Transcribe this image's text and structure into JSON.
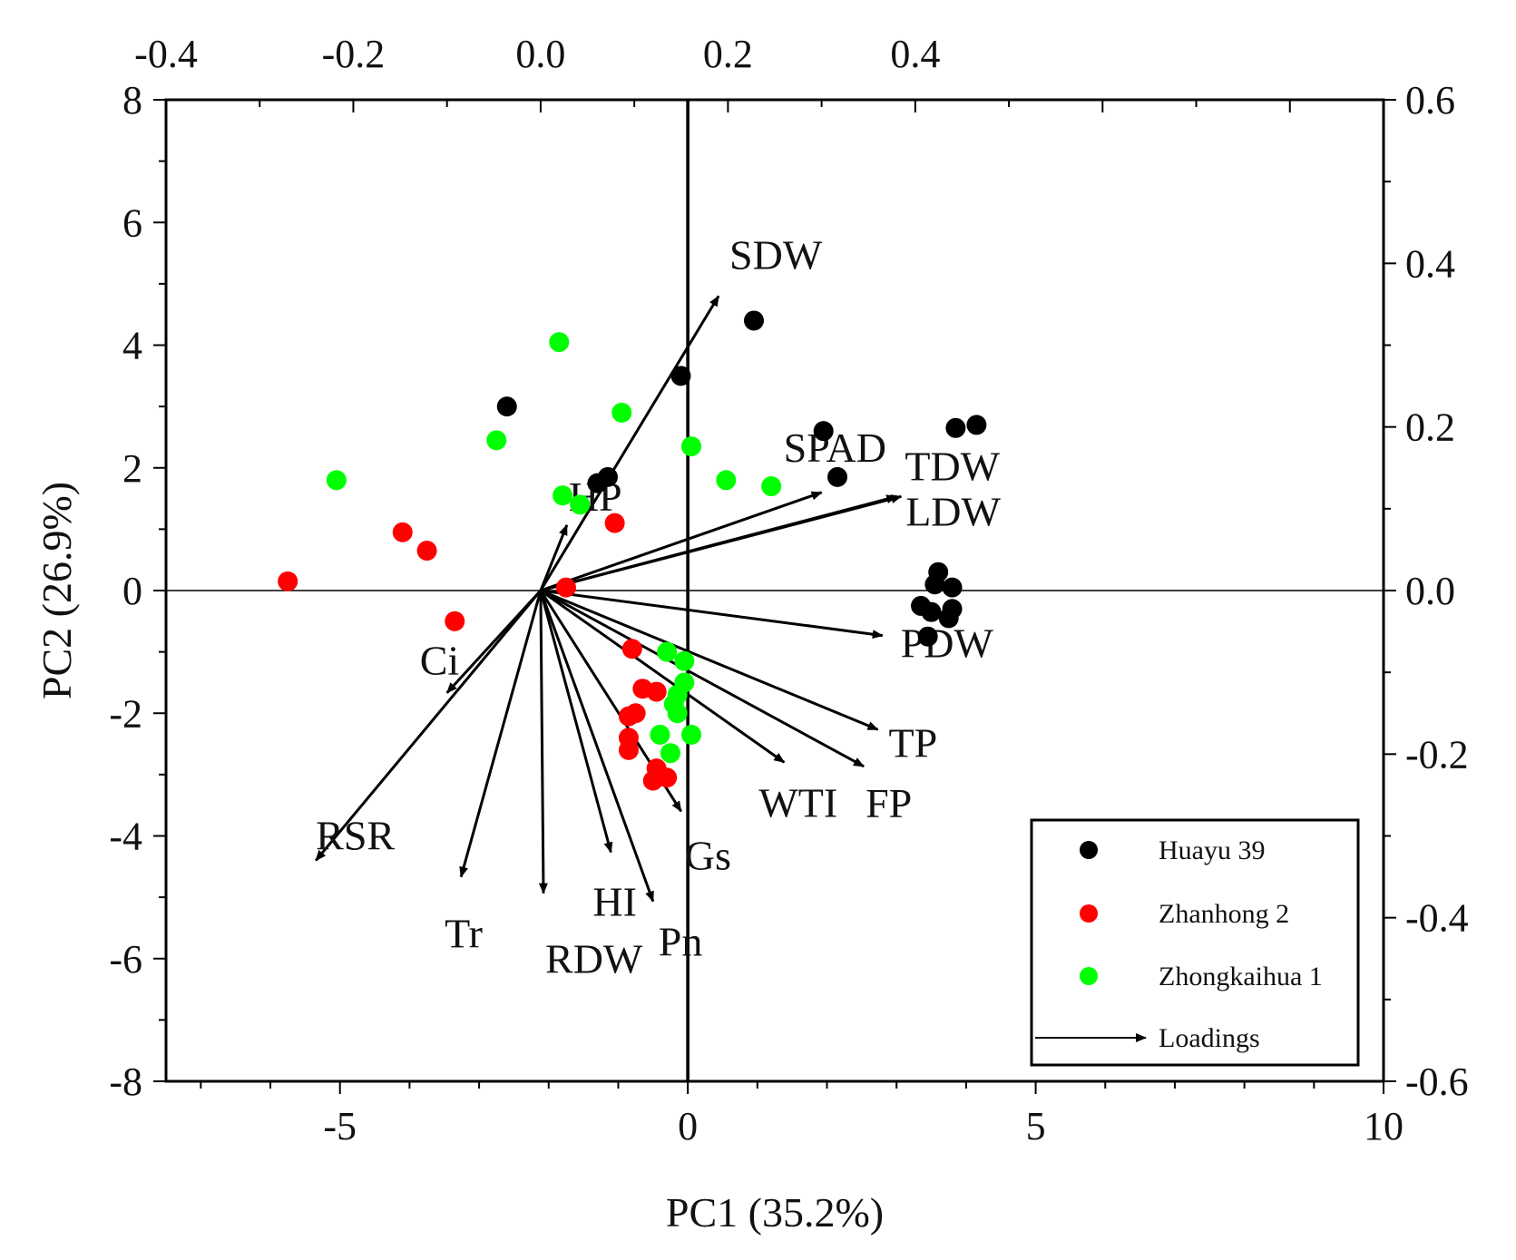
{
  "chart_data": {
    "type": "scatter",
    "subtype": "pca-biplot",
    "title": "",
    "xlabel": "PC1 (35.2%)",
    "ylabel": "PC2 (26.9%)",
    "xlim": [
      -7.5,
      10
    ],
    "ylim": [
      -8,
      8
    ],
    "x_ticks": [
      -5,
      0,
      5,
      10
    ],
    "y_ticks": [
      -8,
      -6,
      -4,
      -2,
      0,
      2,
      4,
      6,
      8
    ],
    "top_axis": {
      "lim": [
        -0.4,
        0.9
      ],
      "ticks": [
        -0.4,
        -0.2,
        0.0,
        0.2,
        0.4
      ],
      "tick_labels": [
        "-0.4",
        "-0.2",
        "0.0",
        "0.2",
        "0.4"
      ]
    },
    "right_axis": {
      "lim": [
        -0.6,
        0.6
      ],
      "ticks": [
        -0.6,
        -0.4,
        -0.2,
        0.0,
        0.2,
        0.4,
        0.6
      ],
      "tick_labels": [
        "-0.6",
        "-0.4",
        "-0.2",
        "0.0",
        "0.2",
        "0.4",
        "0.6"
      ]
    },
    "grid": false,
    "legend_position": "bottom-right",
    "series": [
      {
        "name": "Huayu 39",
        "color": "#000000",
        "points": [
          [
            0.95,
            4.4
          ],
          [
            -0.1,
            3.5
          ],
          [
            -2.6,
            3.0
          ],
          [
            -1.15,
            1.85
          ],
          [
            -1.3,
            1.75
          ],
          [
            1.95,
            2.6
          ],
          [
            2.15,
            1.85
          ],
          [
            3.85,
            2.65
          ],
          [
            4.15,
            2.7
          ],
          [
            3.6,
            0.3
          ],
          [
            3.55,
            0.1
          ],
          [
            3.8,
            0.05
          ],
          [
            3.35,
            -0.25
          ],
          [
            3.5,
            -0.35
          ],
          [
            3.8,
            -0.3
          ],
          [
            3.75,
            -0.45
          ],
          [
            3.45,
            -0.75
          ]
        ]
      },
      {
        "name": "Zhanhong 2",
        "color": "#ff0000",
        "points": [
          [
            -5.75,
            0.15
          ],
          [
            -4.1,
            0.95
          ],
          [
            -3.75,
            0.65
          ],
          [
            -3.35,
            -0.5
          ],
          [
            -1.75,
            0.05
          ],
          [
            -1.05,
            1.1
          ],
          [
            -0.8,
            -0.95
          ],
          [
            -0.65,
            -1.6
          ],
          [
            -0.45,
            -1.65
          ],
          [
            -0.85,
            -2.05
          ],
          [
            -0.75,
            -2.0
          ],
          [
            -0.85,
            -2.4
          ],
          [
            -0.85,
            -2.6
          ],
          [
            -0.45,
            -2.9
          ],
          [
            -0.5,
            -3.1
          ],
          [
            -0.3,
            -3.05
          ]
        ]
      },
      {
        "name": "Zhongkaihua 1",
        "color": "#00ff00",
        "points": [
          [
            -5.05,
            1.8
          ],
          [
            -1.85,
            4.05
          ],
          [
            -0.95,
            2.9
          ],
          [
            -2.75,
            2.45
          ],
          [
            -1.8,
            1.55
          ],
          [
            -1.55,
            1.4
          ],
          [
            0.05,
            2.35
          ],
          [
            0.55,
            1.8
          ],
          [
            1.2,
            1.7
          ],
          [
            -0.3,
            -1.0
          ],
          [
            -0.05,
            -1.15
          ],
          [
            -0.05,
            -1.5
          ],
          [
            -0.15,
            -1.7
          ],
          [
            -0.2,
            -1.85
          ],
          [
            -0.15,
            -2.0
          ],
          [
            -0.4,
            -2.35
          ],
          [
            0.05,
            -2.35
          ],
          [
            -0.25,
            -2.65
          ]
        ]
      }
    ],
    "loadings_legend_label": "Loadings",
    "loadings": [
      {
        "name": "SDW",
        "x": 0.19,
        "y": 0.36
      },
      {
        "name": "SPAD",
        "x": 0.3,
        "y": 0.12
      },
      {
        "name": "TDW",
        "x": 0.385,
        "y": 0.115
      },
      {
        "name": "LDW",
        "x": 0.38,
        "y": 0.115
      },
      {
        "name": "HP",
        "x": 0.028,
        "y": 0.08
      },
      {
        "name": "PDW",
        "x": 0.365,
        "y": -0.055
      },
      {
        "name": "TP",
        "x": 0.36,
        "y": -0.17
      },
      {
        "name": "FP",
        "x": 0.345,
        "y": -0.215
      },
      {
        "name": "WTI",
        "x": 0.26,
        "y": -0.21
      },
      {
        "name": "Gs",
        "x": 0.15,
        "y": -0.27
      },
      {
        "name": "Pn",
        "x": 0.12,
        "y": -0.38
      },
      {
        "name": "HI",
        "x": 0.075,
        "y": -0.32
      },
      {
        "name": "RDW",
        "x": 0.003,
        "y": -0.37
      },
      {
        "name": "Tr",
        "x": -0.085,
        "y": -0.35
      },
      {
        "name": "Ci",
        "x": -0.1,
        "y": -0.125
      },
      {
        "name": "RSR",
        "x": -0.24,
        "y": -0.33
      }
    ]
  }
}
